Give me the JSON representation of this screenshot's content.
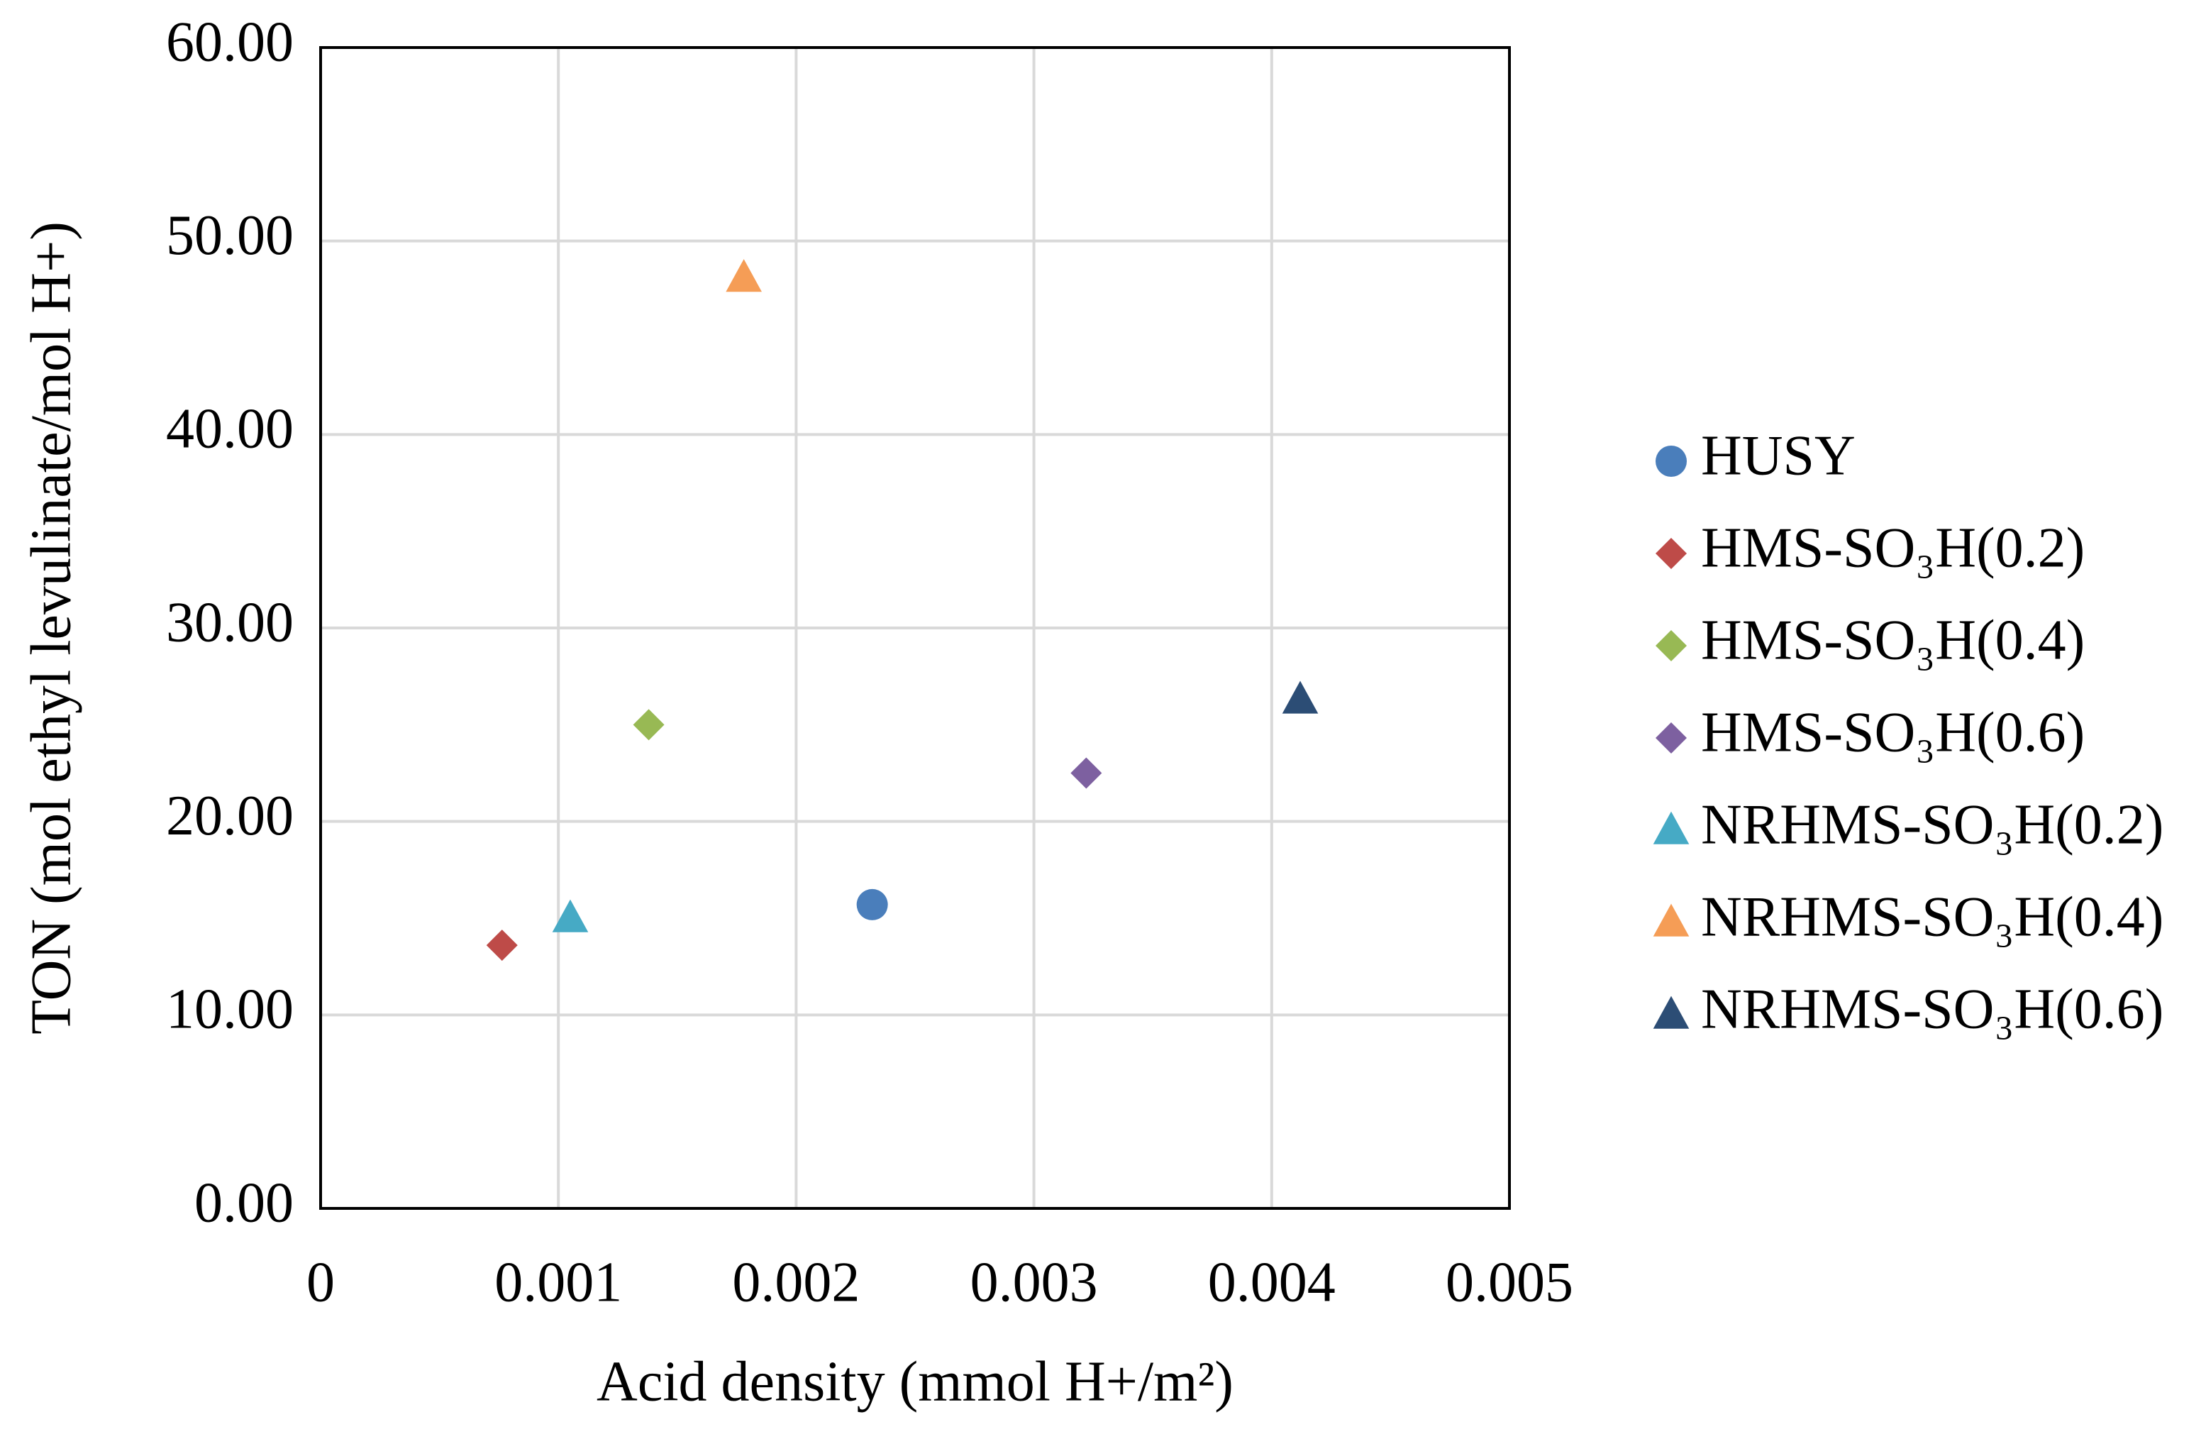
{
  "chart_data": {
    "type": "scatter",
    "xlabel": "Acid density (mmol H+/m²)",
    "ylabel": "TON (mol ethyl levulinate/mol H+)",
    "xlim": [
      0,
      0.005
    ],
    "xticks": [
      0,
      0.001,
      0.002,
      0.003,
      0.004,
      0.005
    ],
    "ylim": [
      0,
      60
    ],
    "yticks": [
      {
        "value": 0,
        "label": "0.00"
      },
      {
        "value": 10,
        "label": "10.00"
      },
      {
        "value": 20,
        "label": "20.00"
      },
      {
        "value": 30,
        "label": "30.00"
      },
      {
        "value": 40,
        "label": "40.00"
      },
      {
        "value": 50,
        "label": "50.00"
      },
      {
        "value": 60,
        "label": "60.00"
      }
    ],
    "grid": true,
    "legend": "right",
    "series": [
      {
        "name": "HUSY",
        "color": "#4a7ebb",
        "marker": "circle",
        "x": [
          0.00232
        ],
        "values": [
          15.7
        ]
      },
      {
        "name": "HMS-SO₃H(0.2)",
        "color": "#be4b48",
        "marker": "diamond",
        "x": [
          0.000763
        ],
        "values": [
          13.6
        ]
      },
      {
        "name": "HMS-SO₃H(0.4)",
        "color": "#98b954",
        "marker": "diamond",
        "x": [
          0.00138
        ],
        "values": [
          25.0
        ]
      },
      {
        "name": "HMS-SO₃H(0.6)",
        "color": "#7d60a0",
        "marker": "diamond",
        "x": [
          0.00322
        ],
        "values": [
          22.5
        ]
      },
      {
        "name": "NRHMS-SO₃H(0.2)",
        "color": "#46aac5",
        "marker": "triangle",
        "x": [
          0.00105
        ],
        "values": [
          15.0
        ]
      },
      {
        "name": "NRHMS-SO₃H(0.4)",
        "color": "#f59d56",
        "marker": "triangle",
        "x": [
          0.00178
        ],
        "values": [
          48.1
        ]
      },
      {
        "name": "NRHMS-SO₃H(0.6)",
        "color": "#2c4d75",
        "marker": "triangle",
        "x": [
          0.00412
        ],
        "values": [
          26.3
        ]
      }
    ]
  }
}
